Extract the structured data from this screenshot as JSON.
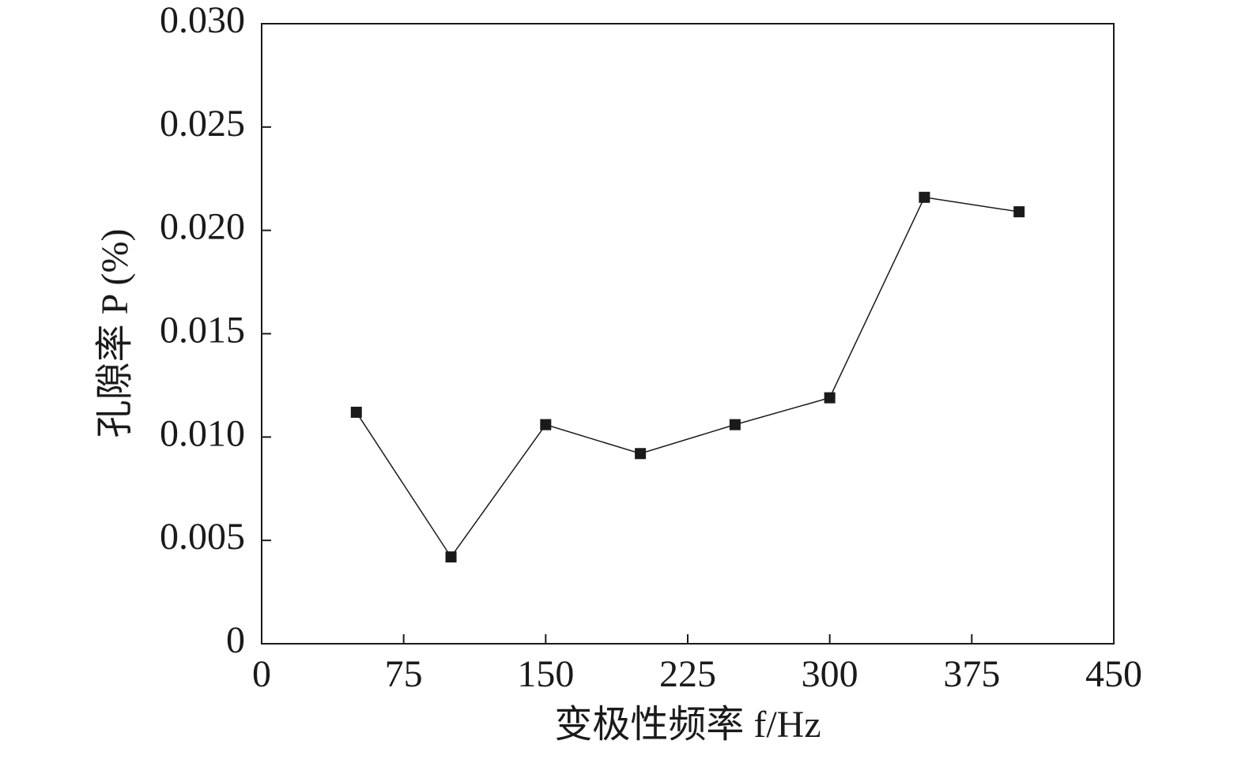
{
  "chart_data": {
    "type": "line",
    "xlabel": "变极性频率 f/Hz",
    "ylabel": "孔隙率 P (%)",
    "x": [
      50,
      100,
      150,
      200,
      250,
      300,
      350,
      400
    ],
    "series": [
      {
        "color": "#1a1a1a",
        "values": [
          0.0112,
          0.0042,
          0.0106,
          0.0092,
          0.0106,
          0.0119,
          0.0216,
          0.0209
        ]
      }
    ],
    "xlim": [
      0,
      450
    ],
    "xticks": [
      0,
      75,
      150,
      225,
      300,
      375,
      450
    ],
    "ylim": [
      0,
      0.03
    ],
    "yticks": [
      0,
      {
        "value": 0.005,
        "label": "0.005"
      },
      {
        "value": 0.01,
        "label": "0.010"
      },
      {
        "value": 0.015,
        "label": "0.015"
      },
      {
        "value": 0.02,
        "label": "0.020"
      },
      {
        "value": 0.025,
        "label": "0.025"
      },
      {
        "value": 0.03,
        "label": "0.030"
      }
    ],
    "grid": false
  }
}
